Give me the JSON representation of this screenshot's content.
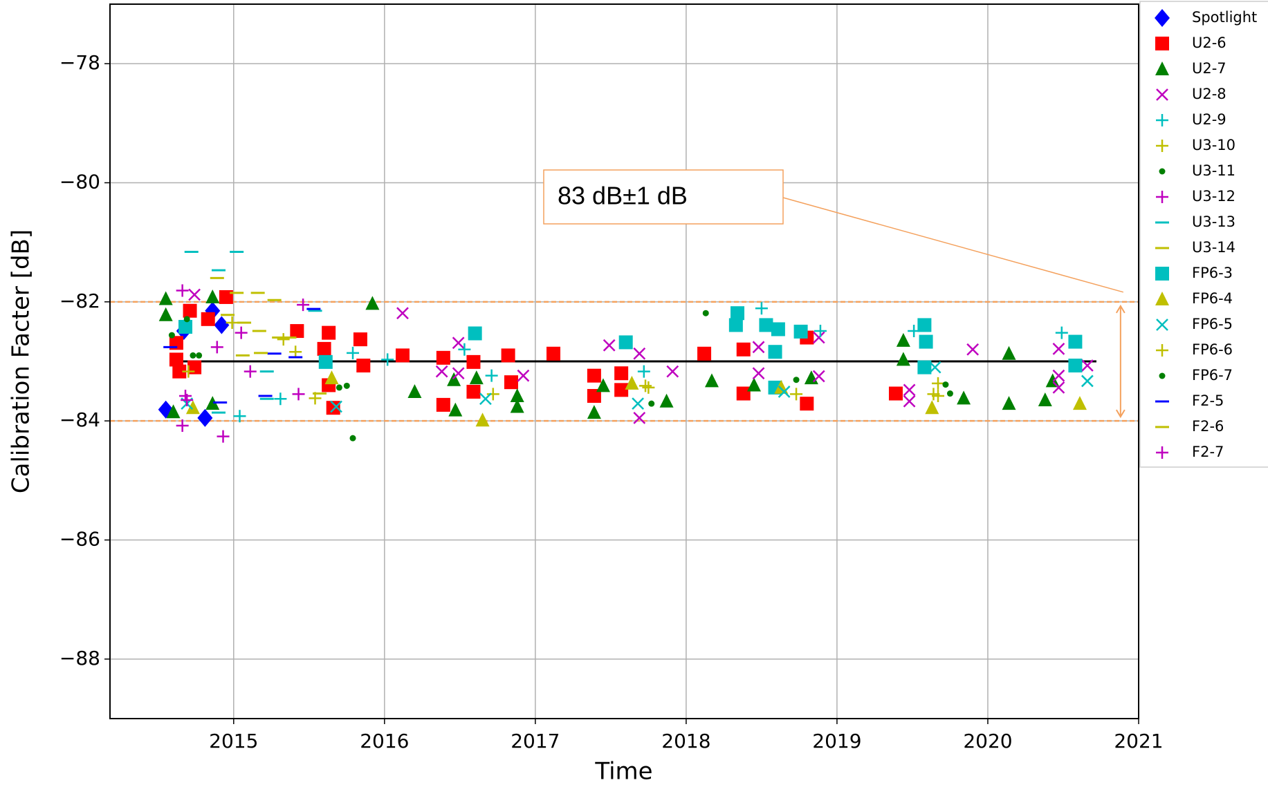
{
  "chart_data": {
    "type": "scatter",
    "xlabel": "Time",
    "ylabel": "Calibration Facter [dB]",
    "xlim": [
      2014.18,
      2021
    ],
    "ylim": [
      -89,
      -77
    ],
    "xticks": [
      2015,
      2016,
      2017,
      2018,
      2019,
      2020,
      2021
    ],
    "yticks": [
      {
        "value": -78,
        "label": "−78"
      },
      {
        "value": -80,
        "label": "−80"
      },
      {
        "value": -82,
        "label": "−82"
      },
      {
        "value": -84,
        "label": "−84"
      },
      {
        "value": -86,
        "label": "−86"
      },
      {
        "value": -88,
        "label": "−88"
      }
    ],
    "grid": true,
    "legend": "outside upper right",
    "reference_lines": [
      {
        "y": -82,
        "color": "#f4a15d",
        "style": "dashed"
      },
      {
        "y": -84,
        "color": "#f4a15d",
        "style": "dashed"
      }
    ],
    "mean_line": {
      "y": -83,
      "x": [
        2014.6,
        2020.72
      ],
      "color": "#000000"
    },
    "annotation": {
      "text": "83 dB±1 dB",
      "x": 2020.88,
      "color": "#f4a15d"
    },
    "series": [
      {
        "name": "Spotlight",
        "color": "#0000ff",
        "marker": "diamond",
        "x": [
          2014.55,
          2014.81,
          2014.92,
          2014.67,
          2014.86
        ],
        "values": [
          -83.81,
          -83.95,
          -82.39,
          -82.49,
          -82.15
        ]
      },
      {
        "name": "U2-6",
        "color": "#ff0000",
        "marker": "square",
        "x": [
          2014.95,
          2014.71,
          2014.83,
          2014.62,
          2014.62,
          2014.64,
          2014.74,
          2015.42,
          2015.63,
          2015.6,
          2015.63,
          2015.66,
          2015.84,
          2015.86,
          2016.12,
          2016.39,
          2016.39,
          2016.59,
          2016.59,
          2016.82,
          2016.84,
          2017.12,
          2017.39,
          2017.39,
          2017.57,
          2017.57,
          2018.12,
          2018.38,
          2018.38,
          2018.8,
          2018.8,
          2019.39
        ],
        "values": [
          -81.92,
          -82.15,
          -82.29,
          -82.69,
          -82.97,
          -83.17,
          -83.1,
          -82.49,
          -82.52,
          -82.79,
          -83.4,
          -83.78,
          -82.63,
          -83.07,
          -82.9,
          -82.94,
          -83.73,
          -83.01,
          -83.51,
          -82.9,
          -83.35,
          -82.87,
          -83.24,
          -83.58,
          -83.2,
          -83.48,
          -82.87,
          -82.8,
          -83.54,
          -82.6,
          -83.71,
          -83.54
        ]
      },
      {
        "name": "U2-7",
        "color": "#008000",
        "marker": "triangle",
        "x": [
          2014.55,
          2014.55,
          2014.86,
          2014.6,
          2014.86,
          2015.92,
          2016.2,
          2016.46,
          2016.47,
          2016.61,
          2016.88,
          2016.88,
          2017.39,
          2017.45,
          2017.87,
          2018.17,
          2018.45,
          2018.83,
          2019.44,
          2019.44,
          2019.84,
          2020.14,
          2020.14,
          2020.38,
          2020.43
        ],
        "values": [
          -81.95,
          -82.22,
          -81.92,
          -83.85,
          -83.71,
          -82.03,
          -83.51,
          -83.31,
          -83.82,
          -83.28,
          -83.58,
          -83.76,
          -83.86,
          -83.41,
          -83.67,
          -83.33,
          -83.4,
          -83.28,
          -82.65,
          -82.97,
          -83.62,
          -82.87,
          -83.71,
          -83.65,
          -83.33
        ]
      },
      {
        "name": "U2-8",
        "color": "#bf00bf",
        "marker": "x",
        "x": [
          2014.74,
          2016.12,
          2016.49,
          2016.38,
          2016.49,
          2016.92,
          2017.49,
          2017.69,
          2017.69,
          2017.91,
          2018.48,
          2018.48,
          2018.88,
          2018.88,
          2019.48,
          2019.48,
          2019.9,
          2020.47,
          2020.47,
          2020.47,
          2020.66
        ],
        "values": [
          -81.88,
          -82.19,
          -82.69,
          -83.17,
          -83.2,
          -83.24,
          -82.73,
          -82.87,
          -83.95,
          -83.17,
          -82.76,
          -83.2,
          -82.6,
          -83.25,
          -83.48,
          -83.67,
          -82.8,
          -82.79,
          -83.24,
          -83.44,
          -83.07
        ]
      },
      {
        "name": "U2-9",
        "color": "#00bfbf",
        "marker": "plus",
        "x": [
          2015.04,
          2015.31,
          2015.79,
          2016.02,
          2016.53,
          2016.71,
          2017.72,
          2018.5,
          2018.89,
          2019.51,
          2020.49
        ],
        "values": [
          -83.92,
          -83.63,
          -82.86,
          -82.97,
          -82.8,
          -83.24,
          -83.17,
          -82.11,
          -82.49,
          -82.49,
          -82.52
        ]
      },
      {
        "name": "U3-10",
        "color": "#bfbf00",
        "marker": "plus",
        "x": [
          2015.33,
          2015.54,
          2016.72,
          2017.73,
          2018.73,
          2019.67,
          2019.67
        ],
        "values": [
          -82.63,
          -83.62,
          -83.55,
          -83.41,
          -83.55,
          -83.37,
          -83.58
        ]
      },
      {
        "name": "U3-11",
        "color": "#008000",
        "marker": "circle",
        "x": [
          2014.73,
          2015.75,
          2015.79,
          2018.13,
          2018.73,
          2019.72,
          2019.75,
          2017.77
        ],
        "values": [
          -82.9,
          -83.41,
          -84.29,
          -82.19,
          -83.31,
          -83.39,
          -83.54,
          -83.71
        ]
      },
      {
        "name": "U3-12",
        "color": "#bf00bf",
        "marker": "plus",
        "x": [
          2014.66,
          2015.46,
          2014.66,
          2015.43,
          2014.68
        ],
        "values": [
          -81.81,
          -82.05,
          -84.08,
          -83.55,
          -83.58
        ]
      },
      {
        "name": "U3-13",
        "color": "#00bfbf",
        "marker": "hline",
        "x": [
          2014.72,
          2015.02,
          2014.9,
          2015.54,
          2015.22,
          2015.22,
          2014.9
        ],
        "values": [
          -81.16,
          -81.16,
          -81.47,
          -82.15,
          -83.17,
          -83.63,
          -83.86
        ]
      },
      {
        "name": "U3-14",
        "color": "#bfbf00",
        "marker": "hline",
        "x": [
          2014.89,
          2015.02,
          2015.16,
          2015.27,
          2015.3,
          2015.57,
          2015.06
        ],
        "values": [
          -81.6,
          -81.85,
          -81.85,
          -81.97,
          -82.6,
          -83.54,
          -82.9
        ]
      },
      {
        "name": "FP6-3",
        "color": "#00bfbf",
        "marker": "square",
        "x": [
          2014.68,
          2016.6,
          2017.6,
          2018.34,
          2018.33,
          2018.53,
          2018.61,
          2018.59,
          2018.59,
          2018.76,
          2019.58,
          2019.59,
          2019.58,
          2020.58,
          2020.58,
          2015.61
        ],
        "values": [
          -82.42,
          -82.53,
          -82.68,
          -82.19,
          -82.39,
          -82.39,
          -82.46,
          -82.84,
          -83.44,
          -82.5,
          -82.39,
          -82.67,
          -83.1,
          -82.67,
          -83.07,
          -83.01
        ]
      },
      {
        "name": "FP6-4",
        "color": "#bfbf00",
        "marker": "triangle",
        "x": [
          2014.73,
          2015.65,
          2016.65,
          2017.64,
          2018.63,
          2019.63,
          2020.61
        ],
        "values": [
          -83.78,
          -83.28,
          -83.99,
          -83.37,
          -83.44,
          -83.78,
          -83.71
        ]
      },
      {
        "name": "FP6-5",
        "color": "#00bfbf",
        "marker": "x",
        "x": [
          2014.69,
          2015.68,
          2016.67,
          2017.68,
          2018.65,
          2019.65,
          2020.66
        ],
        "values": [
          -83.71,
          -83.76,
          -83.63,
          -83.71,
          -83.51,
          -83.1,
          -83.33
        ]
      },
      {
        "name": "FP6-6",
        "color": "#bfbf00",
        "marker": "plus",
        "x": [
          2014.7,
          2014.99,
          2015.41,
          2017.75,
          2019.64
        ],
        "values": [
          -83.17,
          -82.35,
          -82.84,
          -83.44,
          -83.55
        ]
      },
      {
        "name": "FP6-7",
        "color": "#008000",
        "marker": "circle",
        "x": [
          2014.69,
          2014.59,
          2015.7,
          2014.77
        ],
        "values": [
          -82.29,
          -82.56,
          -83.44,
          -82.9
        ]
      },
      {
        "name": "F2-5",
        "color": "#0000ff",
        "marker": "hline",
        "x": [
          2014.58,
          2014.91,
          2015.27,
          2015.41,
          2015.21,
          2015.53
        ],
        "values": [
          -82.76,
          -83.69,
          -82.87,
          -82.93,
          -83.58,
          -82.12
        ]
      },
      {
        "name": "F2-6",
        "color": "#bfbf00",
        "marker": "hline",
        "x": [
          2014.96,
          2015.17,
          2015.18,
          2015.37,
          2015.07
        ],
        "values": [
          -82.22,
          -82.49,
          -82.86,
          -82.6,
          -82.35
        ]
      },
      {
        "name": "F2-7",
        "color": "#bf00bf",
        "marker": "plus",
        "x": [
          2015.05,
          2014.93,
          2014.69,
          2015.11,
          2014.89
        ],
        "values": [
          -82.52,
          -84.26,
          -83.65,
          -83.17,
          -82.76
        ]
      }
    ]
  }
}
